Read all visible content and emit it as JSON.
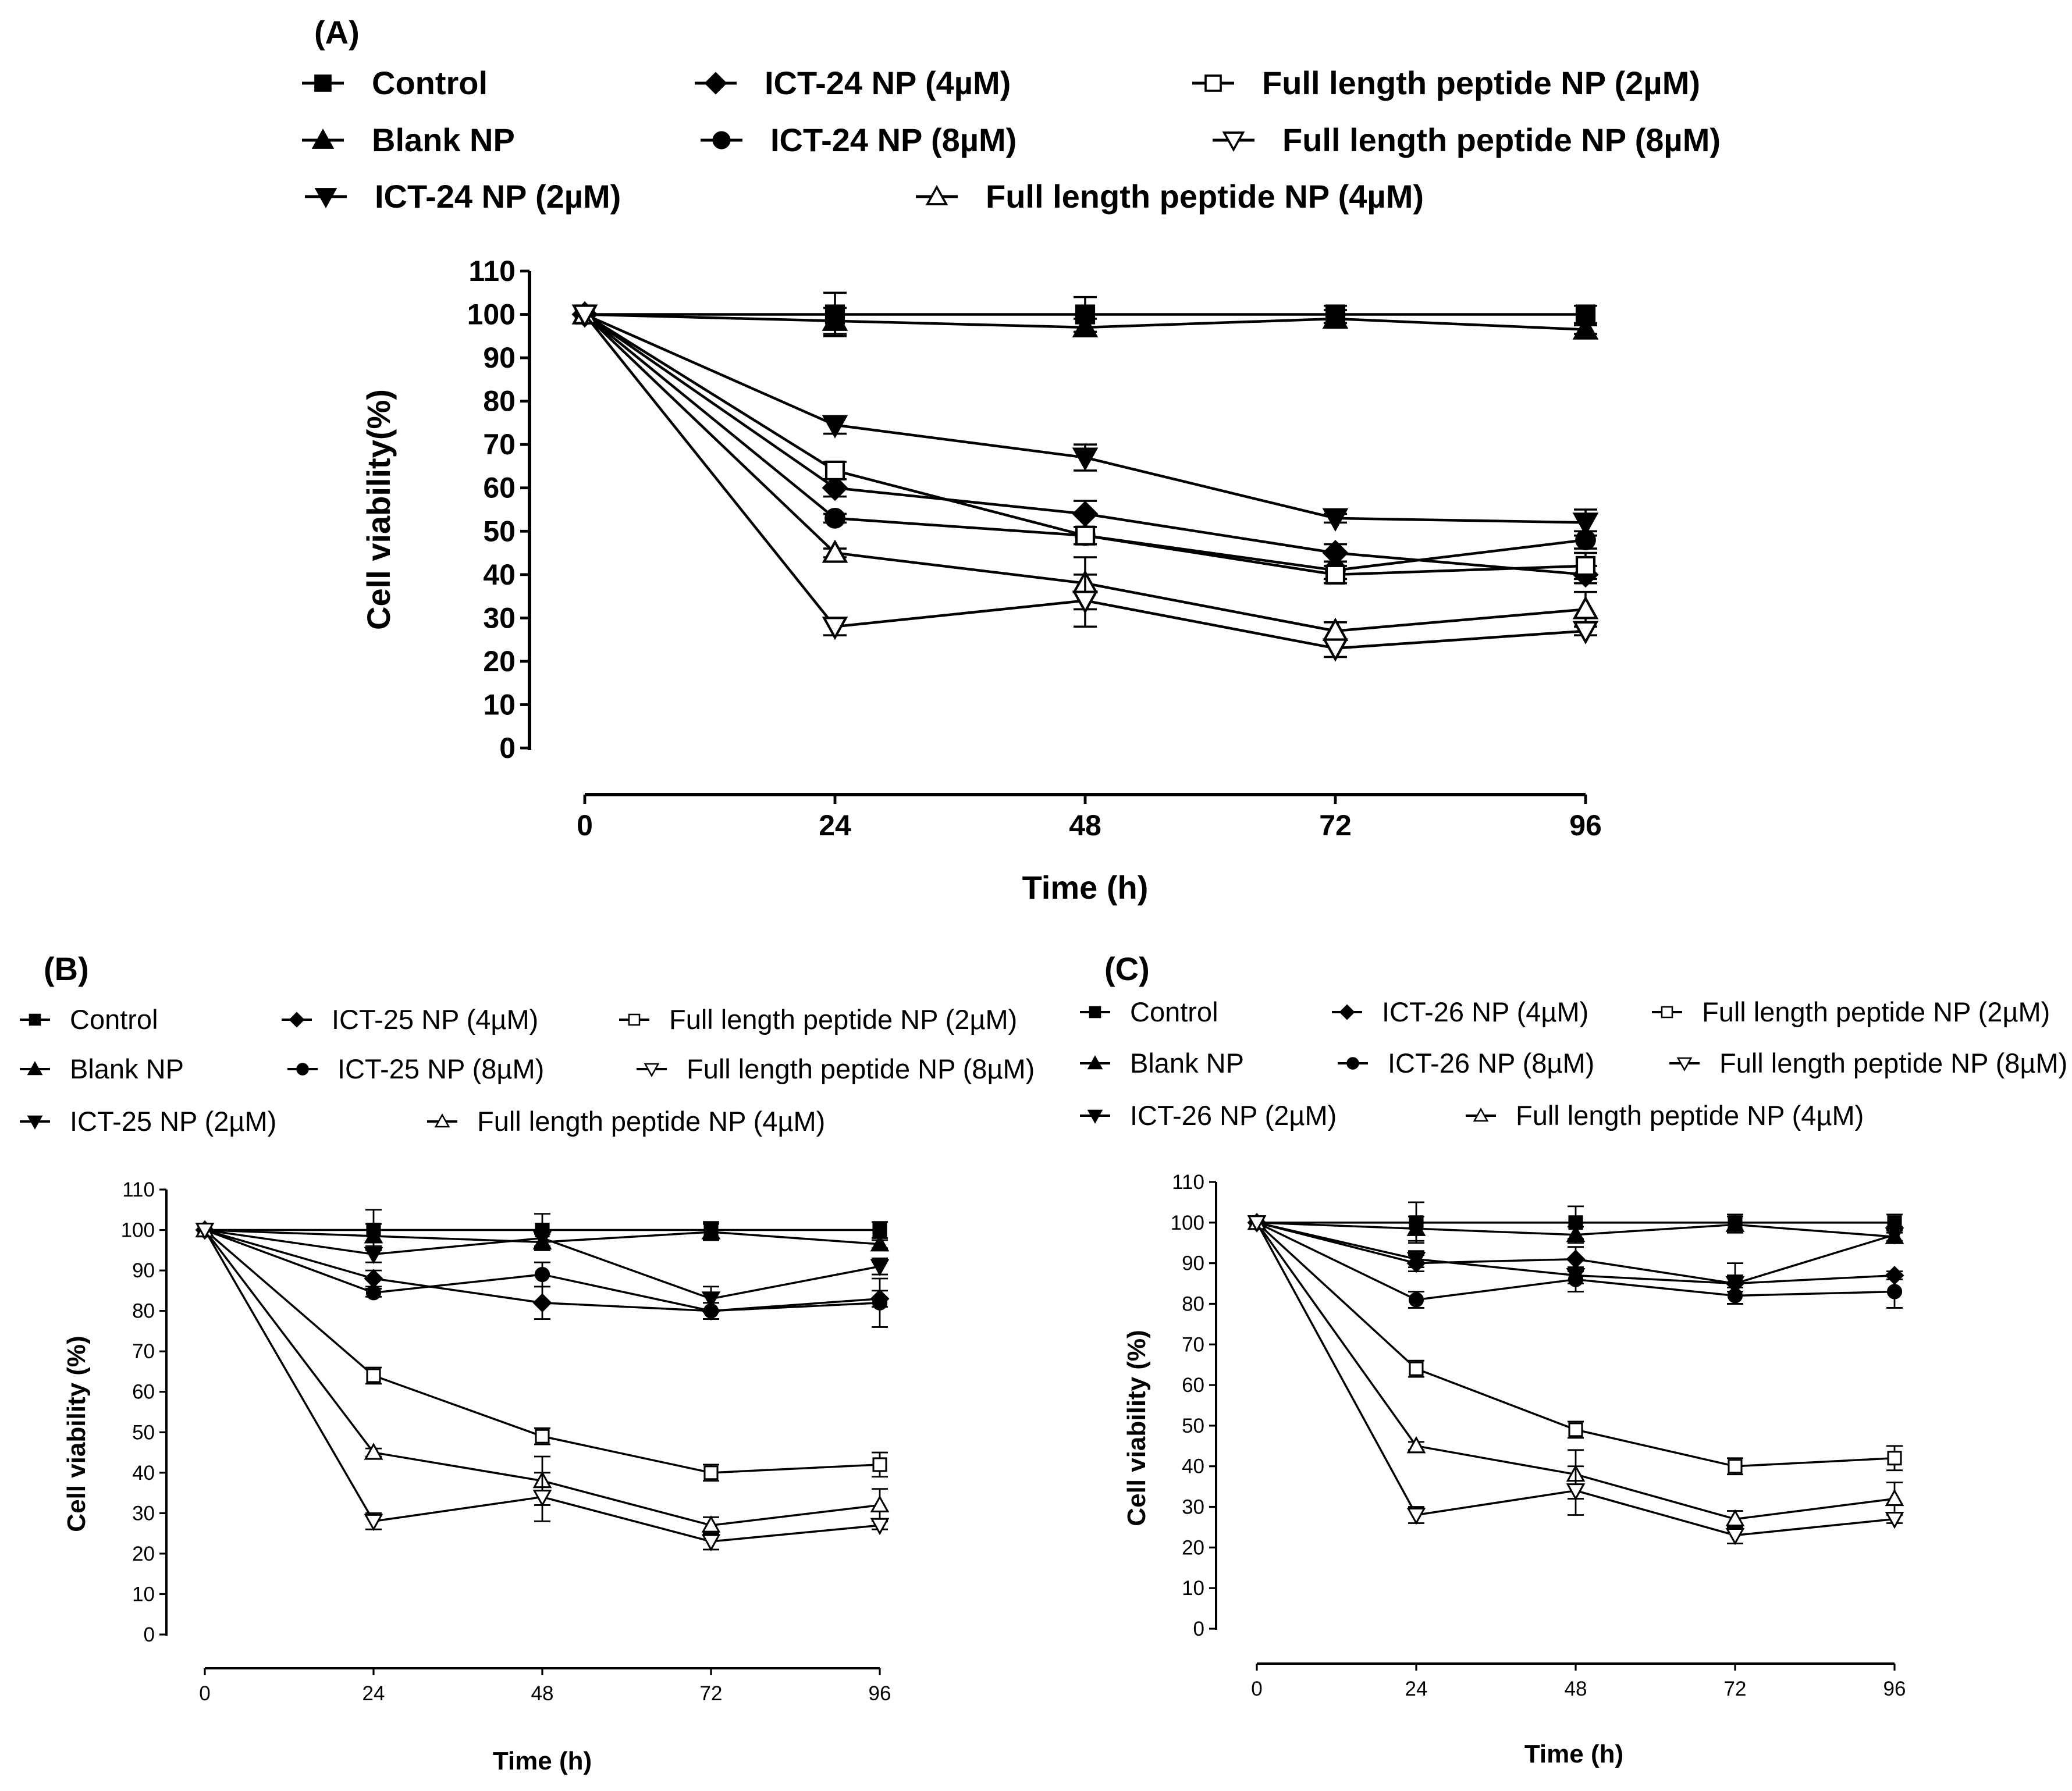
{
  "chart_data": [
    {
      "panel_label": "(A)",
      "type": "line",
      "xlabel": "Time (h)",
      "ylabel": "Cell viability(%)",
      "x": [
        0,
        24,
        48,
        72,
        96
      ],
      "x_ticks": [
        "0",
        "24",
        "48",
        "72",
        "96"
      ],
      "y_ticks": [
        "0",
        "10",
        "20",
        "30",
        "40",
        "50",
        "60",
        "70",
        "80",
        "90",
        "100",
        "110"
      ],
      "xlim": [
        0,
        96
      ],
      "ylim": [
        0,
        110
      ],
      "legend": "top",
      "series": [
        {
          "name": "Control",
          "marker": "square-filled",
          "values": [
            100,
            100,
            100,
            100,
            100
          ],
          "errors": [
            0,
            5,
            4,
            2,
            2
          ]
        },
        {
          "name": "Blank NP",
          "marker": "triangle-up-filled",
          "values": [
            100,
            98.5,
            97,
            99,
            96.5
          ],
          "errors": [
            0,
            3,
            2,
            2,
            1
          ]
        },
        {
          "name": "ICT-24 NP (2µM)",
          "marker": "triangle-down-filled",
          "values": [
            100,
            74.5,
            67,
            53,
            52
          ],
          "errors": [
            0,
            2,
            3,
            1,
            3
          ]
        },
        {
          "name": "ICT-24 NP (4µM)",
          "marker": "diamond-filled",
          "values": [
            100,
            60,
            54,
            45,
            40
          ],
          "errors": [
            0,
            2,
            3,
            2,
            2
          ]
        },
        {
          "name": "ICT-24 NP (8µM)",
          "marker": "circle-filled",
          "values": [
            100,
            53,
            49,
            41,
            48
          ],
          "errors": [
            0,
            1,
            2,
            2,
            2
          ]
        },
        {
          "name": "Full length peptide NP (2µM)",
          "marker": "square-open",
          "values": [
            100,
            64,
            49,
            40,
            42
          ],
          "errors": [
            0,
            2,
            2,
            2,
            3
          ]
        },
        {
          "name": "Full length peptide NP (4µM)",
          "marker": "triangle-up-open",
          "values": [
            100,
            45,
            38,
            27,
            32
          ],
          "errors": [
            0,
            1,
            6,
            2,
            4
          ]
        },
        {
          "name": "Full length peptide NP (8µM)",
          "marker": "triangle-down-open",
          "values": [
            100,
            28,
            34,
            23,
            27
          ],
          "errors": [
            0,
            2,
            6,
            2,
            1
          ]
        }
      ]
    },
    {
      "panel_label": "(B)",
      "type": "line",
      "xlabel": "Time (h)",
      "ylabel": "Cell viability (%)",
      "x": [
        0,
        24,
        48,
        72,
        96
      ],
      "x_ticks": [
        "0",
        "24",
        "48",
        "72",
        "96"
      ],
      "y_ticks": [
        "0",
        "10",
        "20",
        "30",
        "40",
        "50",
        "60",
        "70",
        "80",
        "90",
        "100",
        "110"
      ],
      "xlim": [
        0,
        96
      ],
      "ylim": [
        0,
        110
      ],
      "legend": "top",
      "series": [
        {
          "name": "Control",
          "marker": "square-filled",
          "values": [
            100,
            100,
            100,
            100,
            100
          ],
          "errors": [
            0,
            5,
            4,
            2,
            2
          ]
        },
        {
          "name": "Blank NP",
          "marker": "triangle-up-filled",
          "values": [
            100,
            98.5,
            97,
            99.5,
            96.5
          ],
          "errors": [
            0,
            3,
            2,
            2,
            1
          ]
        },
        {
          "name": "ICT-25 NP (2µM)",
          "marker": "triangle-down-filled",
          "values": [
            100,
            94,
            98,
            83,
            91
          ],
          "errors": [
            0,
            2,
            2,
            3,
            2
          ]
        },
        {
          "name": "ICT-25 NP (4µM)",
          "marker": "diamond-filled",
          "values": [
            100,
            88,
            82,
            80,
            83
          ],
          "errors": [
            0,
            2,
            4,
            2,
            2
          ]
        },
        {
          "name": "ICT-25 NP (8µM)",
          "marker": "circle-filled",
          "values": [
            100,
            84.5,
            89,
            80,
            82
          ],
          "errors": [
            0,
            1,
            3,
            2,
            6
          ]
        },
        {
          "name": "Full length peptide NP (2µM)",
          "marker": "square-open",
          "values": [
            100,
            64,
            49,
            40,
            42
          ],
          "errors": [
            0,
            2,
            2,
            2,
            3
          ]
        },
        {
          "name": "Full length peptide NP (4µM)",
          "marker": "triangle-up-open",
          "values": [
            100,
            45,
            38,
            27,
            32
          ],
          "errors": [
            0,
            1,
            6,
            2,
            4
          ]
        },
        {
          "name": "Full length peptide NP (8µM)",
          "marker": "triangle-down-open",
          "values": [
            100,
            28,
            34,
            23,
            27
          ],
          "errors": [
            0,
            2,
            6,
            2,
            1
          ]
        }
      ]
    },
    {
      "panel_label": "(C)",
      "type": "line",
      "xlabel": "Time (h)",
      "ylabel": "Cell viability (%)",
      "x": [
        0,
        24,
        48,
        72,
        96
      ],
      "x_ticks": [
        "0",
        "24",
        "48",
        "72",
        "96"
      ],
      "y_ticks": [
        "0",
        "10",
        "20",
        "30",
        "40",
        "50",
        "60",
        "70",
        "80",
        "90",
        "100",
        "110"
      ],
      "xlim": [
        0,
        96
      ],
      "ylim": [
        0,
        110
      ],
      "legend": "top",
      "series": [
        {
          "name": "Control",
          "marker": "square-filled",
          "values": [
            100,
            100,
            100,
            100,
            100
          ],
          "errors": [
            0,
            5,
            4,
            2,
            2
          ]
        },
        {
          "name": "Blank NP",
          "marker": "triangle-up-filled",
          "values": [
            100,
            98.5,
            97,
            99.5,
            96.5
          ],
          "errors": [
            0,
            3,
            2,
            2,
            1
          ]
        },
        {
          "name": "ICT-26 NP (2µM)",
          "marker": "triangle-down-filled",
          "values": [
            100,
            91,
            87,
            85,
            97
          ],
          "errors": [
            0,
            2,
            2,
            2,
            2
          ]
        },
        {
          "name": "ICT-26 NP (4µM)",
          "marker": "diamond-filled",
          "values": [
            100,
            90,
            91,
            85,
            87
          ],
          "errors": [
            0,
            2,
            3,
            5,
            1
          ]
        },
        {
          "name": "ICT-26 NP (8µM)",
          "marker": "circle-filled",
          "values": [
            100,
            81,
            86,
            82,
            83
          ],
          "errors": [
            0,
            2,
            3,
            2,
            4
          ]
        },
        {
          "name": "Full length peptide NP (2µM)",
          "marker": "square-open",
          "values": [
            100,
            64,
            49,
            40,
            42
          ],
          "errors": [
            0,
            2,
            2,
            2,
            3
          ]
        },
        {
          "name": "Full length peptide NP (4µM)",
          "marker": "triangle-up-open",
          "values": [
            100,
            45,
            38,
            27,
            32
          ],
          "errors": [
            0,
            1,
            6,
            2,
            4
          ]
        },
        {
          "name": "Full length peptide NP (8µM)",
          "marker": "triangle-down-open",
          "values": [
            100,
            28,
            34,
            23,
            27
          ],
          "errors": [
            0,
            2,
            6,
            2,
            1
          ]
        }
      ]
    }
  ]
}
